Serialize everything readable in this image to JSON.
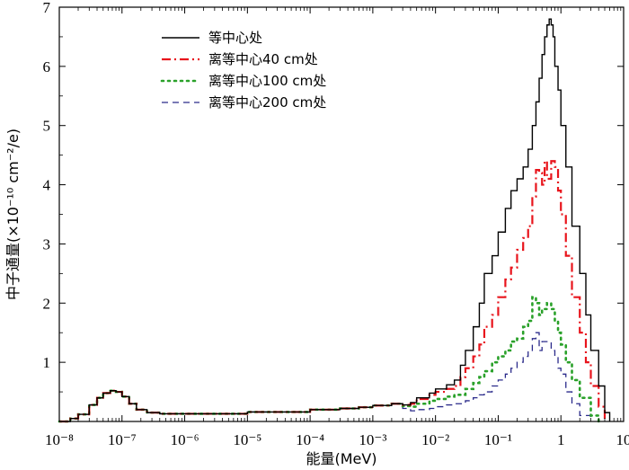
{
  "chart_data": {
    "type": "line",
    "x_scale": "log",
    "xlim": [
      1e-08,
      10
    ],
    "ylim": [
      0,
      7
    ],
    "xlabel": "能量(MeV)",
    "ylabel": "中子通量(×10⁻¹⁰ cm⁻²/e)",
    "x_tick_labels": [
      "10⁻⁸",
      "10⁻⁷",
      "10⁻⁶",
      "10⁻⁵",
      "10⁻⁴",
      "10⁻³",
      "10⁻²",
      "10⁻¹",
      "1",
      "10"
    ],
    "y_tick_labels": [
      "1",
      "2",
      "3",
      "4",
      "5",
      "6",
      "7"
    ],
    "legend_position": "top-left",
    "series": [
      {
        "name": "等中心处",
        "color": "#000000",
        "style": "solid",
        "x": [
          1e-08,
          1.5e-08,
          2e-08,
          3e-08,
          4e-08,
          5e-08,
          6.5e-08,
          8e-08,
          1e-07,
          1.3e-07,
          1.7e-07,
          2.5e-07,
          4e-07,
          1e-06,
          1e-05,
          0.0001,
          0.0003,
          0.0006,
          0.001,
          0.002,
          0.003,
          0.004,
          0.005,
          0.008,
          0.01,
          0.015,
          0.02,
          0.025,
          0.03,
          0.04,
          0.05,
          0.06,
          0.08,
          0.1,
          0.13,
          0.16,
          0.2,
          0.25,
          0.3,
          0.35,
          0.4,
          0.45,
          0.5,
          0.55,
          0.6,
          0.65,
          0.7,
          0.75,
          0.8,
          0.9,
          1.0,
          1.2,
          1.5,
          2.0,
          2.5,
          3.0,
          4.0,
          5.0,
          6.0
        ],
        "y": [
          0.0,
          0.05,
          0.12,
          0.28,
          0.4,
          0.48,
          0.52,
          0.5,
          0.42,
          0.3,
          0.2,
          0.15,
          0.13,
          0.13,
          0.16,
          0.2,
          0.22,
          0.24,
          0.27,
          0.3,
          0.28,
          0.32,
          0.4,
          0.48,
          0.55,
          0.62,
          0.7,
          0.95,
          1.2,
          1.6,
          2.0,
          2.5,
          2.8,
          3.2,
          3.6,
          3.9,
          4.1,
          4.3,
          4.6,
          5.0,
          5.4,
          5.8,
          6.2,
          6.5,
          6.7,
          6.8,
          6.7,
          6.5,
          6.0,
          5.6,
          5.0,
          4.3,
          3.3,
          2.5,
          1.8,
          1.2,
          0.6,
          0.15,
          0.0
        ]
      },
      {
        "name": "离等中心40 cm处",
        "color": "#e8141c",
        "style": "dashdot",
        "x": [
          1e-08,
          1.5e-08,
          2e-08,
          3e-08,
          4e-08,
          5e-08,
          6.5e-08,
          8e-08,
          1e-07,
          1.3e-07,
          1.7e-07,
          2.5e-07,
          4e-07,
          1e-06,
          1e-05,
          0.0001,
          0.0003,
          0.0006,
          0.001,
          0.002,
          0.003,
          0.004,
          0.005,
          0.008,
          0.01,
          0.015,
          0.02,
          0.025,
          0.03,
          0.04,
          0.05,
          0.06,
          0.08,
          0.1,
          0.13,
          0.16,
          0.2,
          0.25,
          0.3,
          0.35,
          0.4,
          0.45,
          0.5,
          0.55,
          0.6,
          0.7,
          0.8,
          0.9,
          1.0,
          1.2,
          1.5,
          2.0,
          2.5,
          3.0,
          4.0,
          5.0
        ],
        "y": [
          0.0,
          0.05,
          0.12,
          0.28,
          0.4,
          0.48,
          0.52,
          0.5,
          0.42,
          0.3,
          0.2,
          0.15,
          0.13,
          0.13,
          0.16,
          0.2,
          0.22,
          0.24,
          0.27,
          0.3,
          0.28,
          0.3,
          0.38,
          0.45,
          0.5,
          0.55,
          0.6,
          0.75,
          0.9,
          1.1,
          1.3,
          1.6,
          1.8,
          2.1,
          2.4,
          2.6,
          2.9,
          3.1,
          3.3,
          3.8,
          4.25,
          4.2,
          4.0,
          4.4,
          4.1,
          4.4,
          4.3,
          3.9,
          3.5,
          2.8,
          2.1,
          1.5,
          1.0,
          0.6,
          0.25,
          0.0
        ]
      },
      {
        "name": "离等中心100 cm处",
        "color": "#2aa12a",
        "style": "dotted",
        "x": [
          1e-08,
          1.5e-08,
          2e-08,
          3e-08,
          4e-08,
          5e-08,
          6.5e-08,
          8e-08,
          1e-07,
          1.3e-07,
          1.7e-07,
          2.5e-07,
          4e-07,
          1e-06,
          1e-05,
          0.0001,
          0.0003,
          0.0006,
          0.001,
          0.002,
          0.003,
          0.004,
          0.005,
          0.008,
          0.01,
          0.015,
          0.02,
          0.03,
          0.04,
          0.05,
          0.06,
          0.08,
          0.1,
          0.13,
          0.16,
          0.2,
          0.25,
          0.3,
          0.35,
          0.4,
          0.45,
          0.5,
          0.6,
          0.7,
          0.8,
          0.9,
          1.0,
          1.2,
          1.5,
          2.0,
          3.0,
          4.0
        ],
        "y": [
          0.0,
          0.05,
          0.12,
          0.28,
          0.4,
          0.48,
          0.52,
          0.5,
          0.42,
          0.3,
          0.2,
          0.15,
          0.13,
          0.13,
          0.16,
          0.2,
          0.22,
          0.24,
          0.27,
          0.3,
          0.26,
          0.25,
          0.3,
          0.35,
          0.38,
          0.42,
          0.45,
          0.55,
          0.65,
          0.75,
          0.85,
          1.0,
          1.1,
          1.2,
          1.35,
          1.4,
          1.6,
          1.7,
          2.1,
          2.0,
          1.8,
          1.9,
          2.0,
          1.9,
          1.7,
          1.5,
          1.3,
          1.0,
          0.7,
          0.4,
          0.1,
          0.0
        ]
      },
      {
        "name": "离等中心200 cm处",
        "color": "#2a2a8a",
        "style": "dashed",
        "x": [
          1e-08,
          1.5e-08,
          2e-08,
          3e-08,
          4e-08,
          5e-08,
          6.5e-08,
          8e-08,
          1e-07,
          1.3e-07,
          1.7e-07,
          2.5e-07,
          4e-07,
          1e-06,
          1e-05,
          0.0001,
          0.0003,
          0.0006,
          0.001,
          0.002,
          0.003,
          0.004,
          0.005,
          0.008,
          0.01,
          0.015,
          0.02,
          0.03,
          0.04,
          0.05,
          0.06,
          0.08,
          0.1,
          0.13,
          0.16,
          0.2,
          0.25,
          0.3,
          0.35,
          0.4,
          0.45,
          0.5,
          0.6,
          0.7,
          0.8,
          0.9,
          1.0,
          1.2,
          1.5,
          2.0,
          3.0
        ],
        "y": [
          0.0,
          0.05,
          0.12,
          0.28,
          0.4,
          0.48,
          0.52,
          0.5,
          0.42,
          0.3,
          0.2,
          0.15,
          0.13,
          0.13,
          0.16,
          0.2,
          0.22,
          0.24,
          0.27,
          0.3,
          0.22,
          0.18,
          0.2,
          0.22,
          0.25,
          0.28,
          0.3,
          0.35,
          0.4,
          0.45,
          0.5,
          0.6,
          0.7,
          0.8,
          0.9,
          1.0,
          1.1,
          1.2,
          1.4,
          1.5,
          1.2,
          1.35,
          1.35,
          1.2,
          1.1,
          0.9,
          0.8,
          0.5,
          0.3,
          0.1,
          0.0
        ]
      }
    ]
  }
}
